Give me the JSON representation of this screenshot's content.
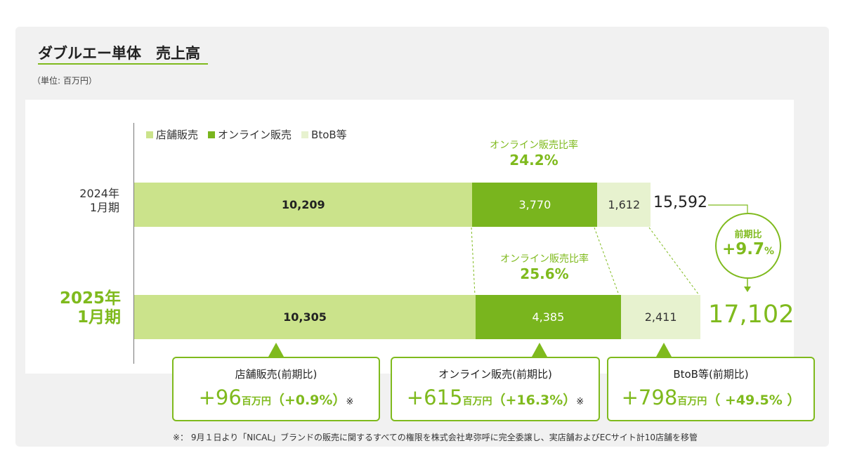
{
  "heading": {
    "title": "ダブルエー単体　売上高",
    "unit": "（単位: 百万円）"
  },
  "colors": {
    "store": "#cbe38b",
    "online": "#79b51e",
    "btob": "#e7f2cf",
    "accent": "#7fba1d"
  },
  "legend": [
    "店舗販売",
    "オンライン販売",
    "BtoB等"
  ],
  "chart_data": {
    "type": "bar",
    "orientation": "horizontal",
    "stacked": true,
    "categories": [
      "2024年 1月期",
      "2025年 1月期"
    ],
    "series": [
      {
        "name": "店舗販売",
        "values": [
          10209,
          10305
        ],
        "labels": [
          "10,209",
          "10,305"
        ]
      },
      {
        "name": "オンライン販売",
        "values": [
          3770,
          4385
        ],
        "labels": [
          "3,770",
          "4,385"
        ]
      },
      {
        "name": "BtoB等",
        "values": [
          1612,
          2411
        ],
        "labels": [
          "1,612",
          "2,411"
        ]
      }
    ],
    "totals": [
      15592,
      17102
    ],
    "total_labels": [
      "15,592",
      "17,102"
    ],
    "annotations": {
      "online_ratio_label": "オンライン販売比率",
      "online_ratio_values": [
        "24.2%",
        "25.6%"
      ],
      "yoy_label": "前期比",
      "yoy_value": "+9.7",
      "yoy_unit": "%"
    },
    "legend_position": "top-left"
  },
  "categories_display": {
    "y2024": [
      "2024年",
      "1月期"
    ],
    "y2025": [
      "2025年",
      "1月期"
    ]
  },
  "cards": [
    {
      "title": "店舗販売(前期比)",
      "value": "+96",
      "unit": "百万円",
      "pct": "（+0.9%）",
      "mark": "※"
    },
    {
      "title": "オンライン販売(前期比)",
      "value": "+615",
      "unit": "百万円",
      "pct": "（+16.3%）",
      "mark": "※"
    },
    {
      "title": "BtoB等(前期比)",
      "value": "+798",
      "unit": "百万円",
      "pct": "（ +49.5% ）",
      "mark": ""
    }
  ],
  "footnote": "※： 9月１日より「NICAL」ブランドの販売に関するすべての権限を株式会社卑弥呼に完全委譲し、実店舗およびECサイト計10店舗を移管"
}
